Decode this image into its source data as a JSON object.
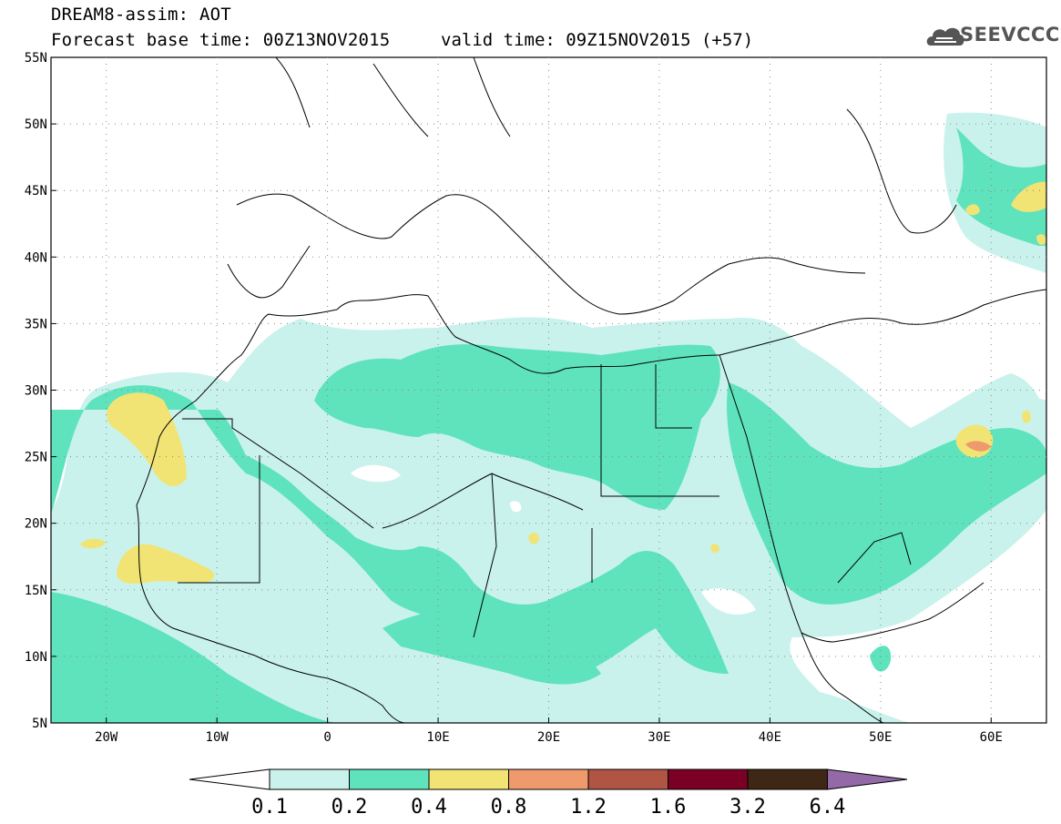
{
  "header": {
    "line1": "DREAM8-assim: AOT",
    "base_time": "Forecast base time: 00Z13NOV2015",
    "valid_time": "valid time: 09Z15NOV2015 (+57)"
  },
  "logo": {
    "text": "SEEVCCC",
    "icon": "cloud-icon"
  },
  "map": {
    "lat_labels": [
      "55N",
      "50N",
      "45N",
      "40N",
      "35N",
      "30N",
      "25N",
      "20N",
      "15N",
      "10N",
      "5N"
    ],
    "lon_labels": [
      "20W",
      "10W",
      "0",
      "10E",
      "20E",
      "30E",
      "40E",
      "50E",
      "60E"
    ],
    "colors": {
      "c01": "#c9f2ec",
      "c02": "#5ee3bd",
      "c04": "#f1e474",
      "c08": "#ee9a6c",
      "c12": "#b05544",
      "c16": "#7a0025",
      "c32": "#3e2714",
      "c64": "#936aa7"
    }
  },
  "colorbar": {
    "labels": [
      "0.1",
      "0.2",
      "0.4",
      "0.8",
      "1.2",
      "1.6",
      "3.2",
      "6.4"
    ],
    "colors": [
      "#ffffff",
      "#c9f2ec",
      "#5ee3bd",
      "#f1e474",
      "#ee9a6c",
      "#b05544",
      "#7a0025",
      "#3e2714",
      "#936aa7"
    ]
  }
}
